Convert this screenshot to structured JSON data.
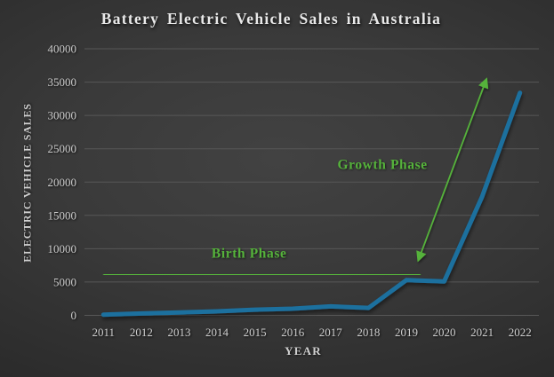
{
  "title": "Battery Electric Vehicle Sales in Australia",
  "chart_data": {
    "type": "line",
    "title": "Battery Electric Vehicle Sales in Australia",
    "xlabel": "YEAR",
    "ylabel": "ELECTRIC VEHICLE SALES",
    "categories": [
      "2011",
      "2012",
      "2013",
      "2014",
      "2015",
      "2016",
      "2017",
      "2018",
      "2019",
      "2020",
      "2021",
      "2022"
    ],
    "values": [
      100,
      280,
      420,
      600,
      850,
      1000,
      1350,
      1120,
      5300,
      5100,
      17800,
      33400
    ],
    "ylim": [
      0,
      40000
    ],
    "ytick_labels": [
      "0",
      "5000",
      "10000",
      "15000",
      "20000",
      "25000",
      "30000",
      "35000",
      "40000"
    ],
    "grid": "horizontal",
    "legend": "none",
    "line_color": "#1f6f9e",
    "grid_color": "#575757",
    "text_color": "#cdcdcd",
    "annotation_color": "#55b23b",
    "annotations": [
      {
        "id": "birth-phase",
        "label": "Birth Phase",
        "type": "double-headed-arrow",
        "color": "#55b23b",
        "from": {
          "x": 0.02,
          "y": 6100
        },
        "to": {
          "x": 8.35,
          "y": 6150
        },
        "label_pos": {
          "x": 3.85,
          "y": 9300
        }
      },
      {
        "id": "growth-phase",
        "label": "Growth Phase",
        "type": "double-headed-arrow",
        "color": "#55b23b",
        "from": {
          "x": 8.31,
          "y": 8200
        },
        "to": {
          "x": 10.12,
          "y": 35500
        },
        "label_pos": {
          "x": 7.37,
          "y": 22600
        }
      }
    ]
  }
}
